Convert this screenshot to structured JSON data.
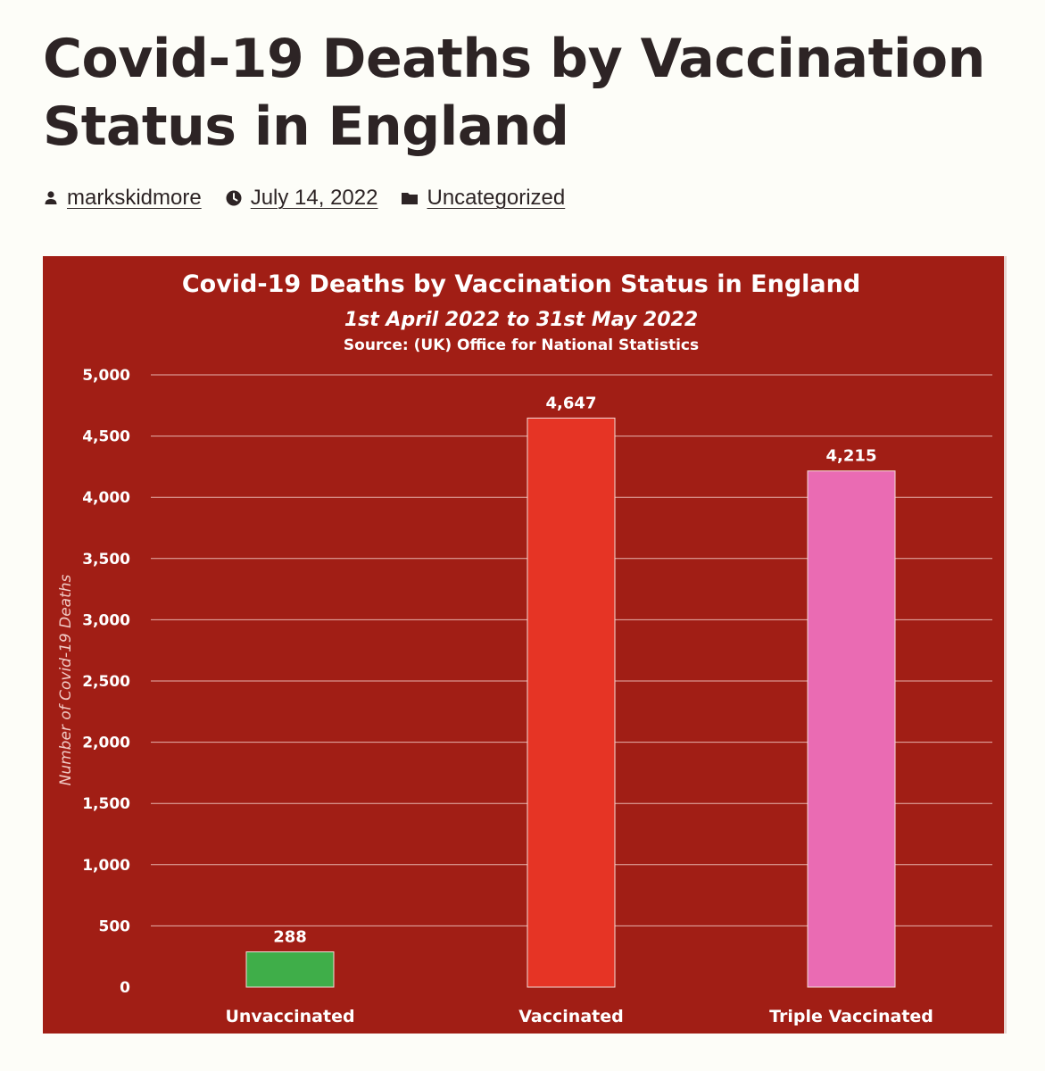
{
  "post": {
    "title": "Covid-19 Deaths by Vaccination Status in England",
    "author": "markskidmore",
    "date": "July 14, 2022",
    "category": "Uncategorized"
  },
  "icons": {
    "author": "person-icon",
    "date": "clock-icon",
    "category": "folder-icon"
  },
  "colors": {
    "chart_background": "#a11e15",
    "unvaccinated": "#3fae49",
    "vaccinated": "#e63425",
    "triple_vaccinated": "#ea6bb3",
    "text": "#ffffff",
    "grid": "#e8b3ad"
  },
  "chart_data": {
    "type": "bar",
    "title": "Covid-19 Deaths by Vaccination Status in England",
    "subtitle": "1st April 2022 to 31st May 2022",
    "source": "Source: (UK) Office for National Statistics",
    "xlabel": "",
    "ylabel": "Number of Covid-19 Deaths",
    "ylim": [
      0,
      5000
    ],
    "yticks": [
      "0",
      "500",
      "1,000",
      "1,500",
      "2,000",
      "2,500",
      "3,000",
      "3,500",
      "4,000",
      "4,500",
      "5,000"
    ],
    "categories": [
      "Unvaccinated",
      "Vaccinated",
      "Triple Vaccinated"
    ],
    "values": [
      288,
      4647,
      4215
    ],
    "value_labels": [
      "288",
      "4,647",
      "4,215"
    ],
    "grid": true,
    "legend": "none"
  }
}
